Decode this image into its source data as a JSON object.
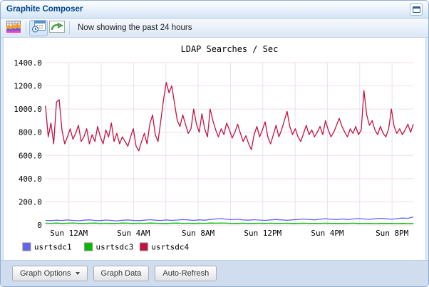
{
  "window": {
    "title": "Graphite Composer",
    "controls": [
      {
        "icon": "maximize-icon"
      }
    ]
  },
  "toolbar": {
    "status_text": "Now showing the past 24 hours",
    "buttons": [
      {
        "name": "graph-style",
        "icon": "area-chart-icon",
        "pressed": false
      },
      {
        "name": "time-range",
        "icon": "calendar-clock-icon",
        "pressed": true
      },
      {
        "name": "update-graph",
        "icon": "refresh-arrow-icon",
        "pressed": false
      }
    ]
  },
  "chart_data": {
    "type": "line",
    "title": "LDAP Searches / Sec",
    "xlabel": "",
    "ylabel": "",
    "ylim": [
      0,
      1400
    ],
    "grid": true,
    "grid_color_h": "#f0dde8",
    "grid_color_v": "#e8e1f2",
    "legend_position": "bottom-left",
    "y_ticks": [
      "1400.0",
      "1200.0",
      "1000.0",
      "800.0",
      "600.0",
      "400.0",
      "200.0",
      "0"
    ],
    "x_ticks": [
      "Sun 12AM",
      "Sun 4AM",
      "Sun 8AM",
      "Sun 12PM",
      "Sun 4PM",
      "Sun 8PM"
    ],
    "series": [
      {
        "name": "usrtsdc1",
        "color": "#6363f0",
        "values": [
          40,
          38,
          42,
          39,
          44,
          40,
          37,
          42,
          45,
          40,
          38,
          43,
          40,
          36,
          41,
          44,
          40,
          38,
          42,
          46,
          42,
          39,
          44,
          40,
          43,
          47,
          44,
          40,
          45,
          42,
          48,
          52,
          56,
          50,
          46,
          50,
          44,
          42,
          46,
          43,
          40,
          44,
          48,
          44,
          41,
          45,
          48,
          52,
          48,
          45,
          50,
          54,
          50,
          47,
          52,
          48,
          52,
          56,
          52,
          49,
          54,
          58,
          54,
          50,
          55,
          60,
          58,
          70
        ]
      },
      {
        "name": "usrtsdc3",
        "color": "#00bb00",
        "values": [
          16,
          15,
          17,
          14,
          16,
          18,
          15,
          14,
          16,
          17,
          15,
          16,
          14,
          15,
          17,
          16,
          14,
          16,
          15,
          17,
          16,
          15,
          14,
          16,
          17,
          15,
          16,
          14,
          16,
          15,
          17,
          16,
          18,
          16,
          15,
          14,
          16,
          15,
          14,
          16,
          15,
          16,
          14,
          15,
          16,
          14,
          15,
          16,
          15,
          14,
          15,
          16,
          14,
          15,
          14,
          15,
          16,
          14,
          15,
          14,
          13,
          14,
          15,
          14,
          13,
          14,
          13,
          14
        ]
      },
      {
        "name": "usrtsdc4",
        "color": "#c41240",
        "values": [
          1030,
          760,
          880,
          700,
          1060,
          1080,
          820,
          700,
          760,
          830,
          740,
          790,
          860,
          720,
          760,
          830,
          700,
          780,
          720,
          850,
          760,
          700,
          820,
          760,
          880,
          720,
          790,
          700,
          760,
          720,
          680,
          760,
          830,
          680,
          640,
          720,
          790,
          700,
          870,
          950,
          780,
          720,
          900,
          1080,
          1230,
          1140,
          1200,
          1050,
          900,
          850,
          950,
          870,
          790,
          830,
          1000,
          870,
          800,
          960,
          830,
          760,
          1000,
          900,
          820,
          760,
          830,
          780,
          880,
          820,
          750,
          800,
          870,
          790,
          720,
          770,
          700,
          650,
          780,
          850,
          760,
          820,
          890,
          760,
          700,
          780,
          860,
          760,
          820,
          900,
          980,
          850,
          780,
          830,
          760,
          720,
          790,
          860,
          780,
          820,
          760,
          800,
          850,
          780,
          900,
          820,
          760,
          800,
          860,
          920,
          850,
          800,
          760,
          830,
          790,
          850,
          780,
          820,
          1160,
          950,
          860,
          900,
          820,
          780,
          850,
          790,
          760,
          830,
          1000,
          850,
          790,
          830,
          780,
          820,
          870,
          800,
          870
        ]
      }
    ]
  },
  "footer": {
    "buttons": [
      {
        "label": "Graph Options",
        "has_menu": true
      },
      {
        "label": "Graph Data",
        "has_menu": false
      },
      {
        "label": "Auto-Refresh",
        "has_menu": false
      }
    ]
  }
}
